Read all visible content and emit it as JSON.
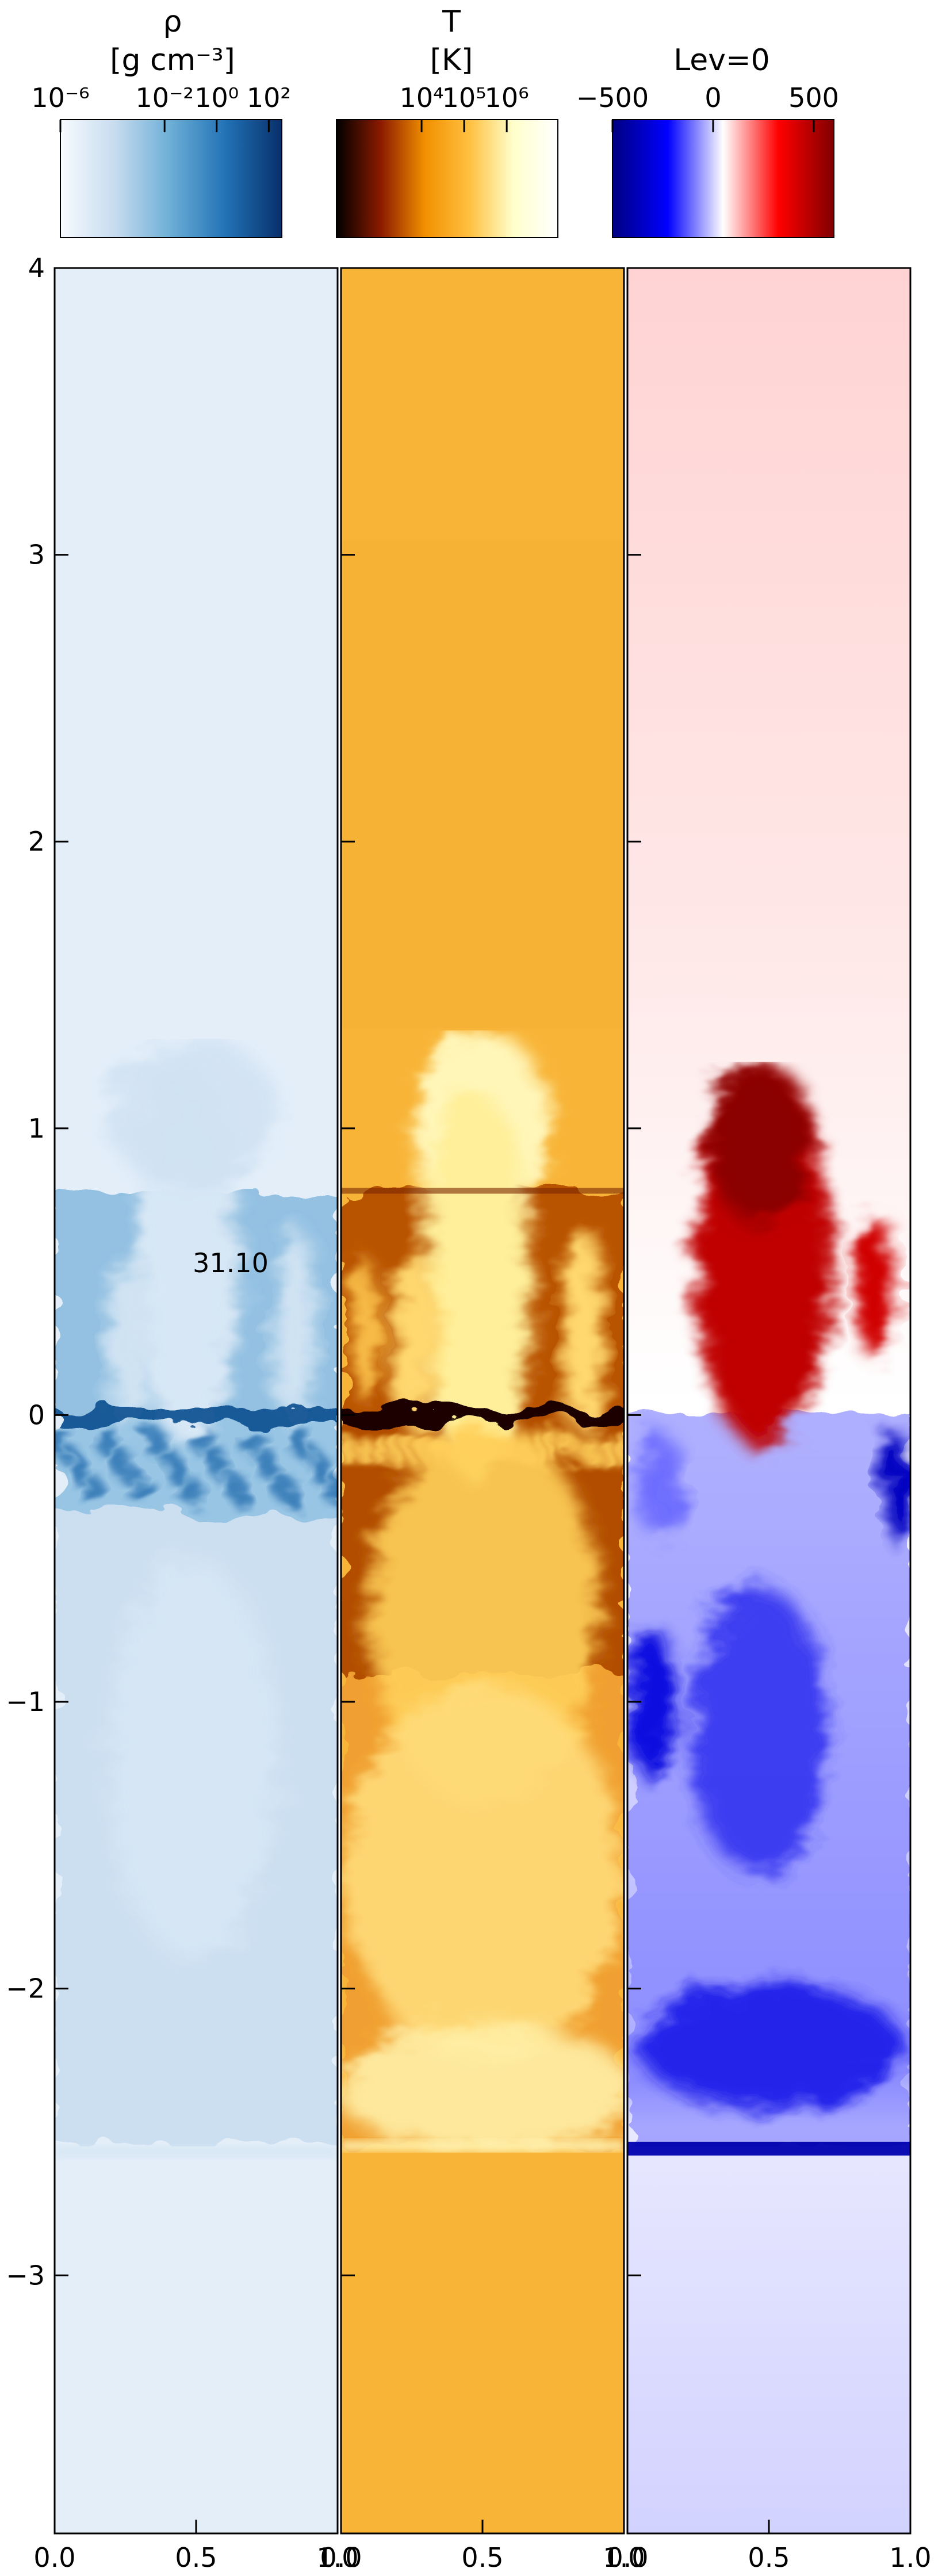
{
  "chart_data": {
    "type": "heatmap",
    "x_ticks": [
      0.0,
      0.5,
      1.0
    ],
    "x_tick_labels": [
      "0.0",
      "0.5",
      "1.0"
    ],
    "y_ticks": [
      4,
      3,
      2,
      1,
      0,
      -1,
      -2,
      -3
    ],
    "y_tick_labels": [
      "4",
      "3",
      "2",
      "1",
      "0",
      "−1",
      "−2",
      "−3"
    ],
    "xlim": [
      0,
      1
    ],
    "ylim": [
      -3.9,
      4.0
    ],
    "annotation": "31.10",
    "annotation_pos": [
      0.5,
      0.53
    ],
    "panels": [
      {
        "id": "density",
        "variable": "ρ",
        "unit": "[g cm⁻³]",
        "colorbar_title": "",
        "cmap": [
          "#f7fbff",
          "#c6dbef",
          "#6baed6",
          "#2171b5",
          "#08306b"
        ],
        "colorbar_tick_labels": [
          "10⁻⁶",
          "10⁻²",
          "10⁰",
          "10²"
        ],
        "colorbar_ticks": [
          -6,
          -2,
          0,
          2
        ],
        "colorbar_range": [
          -6,
          2.5
        ],
        "colorbar_scale": "log",
        "background": "#e3eef9"
      },
      {
        "id": "temperature",
        "variable": "T",
        "unit": "[K]",
        "colorbar_title": "",
        "cmap": [
          "#000000",
          "#8b1a00",
          "#f29000",
          "#ffc040",
          "#ffffcc",
          "#ffffff"
        ],
        "colorbar_tick_labels": [
          "10⁴",
          "10⁵",
          "10⁶"
        ],
        "colorbar_ticks": [
          4,
          5,
          6
        ],
        "colorbar_range": [
          2,
          7.2
        ],
        "colorbar_scale": "log",
        "background": "#f8b437"
      },
      {
        "id": "lev",
        "variable": "",
        "unit": "",
        "colorbar_title": "Lev=0",
        "cmap": [
          "#000080",
          "#0000ff",
          "#ffffff",
          "#ff0000",
          "#800000"
        ],
        "colorbar_tick_labels": [
          "−500",
          "0",
          "500"
        ],
        "colorbar_ticks": [
          -500,
          0,
          500
        ],
        "colorbar_range": [
          -500,
          600
        ],
        "colorbar_scale": "linear",
        "background": "#ffe6e6"
      }
    ]
  }
}
